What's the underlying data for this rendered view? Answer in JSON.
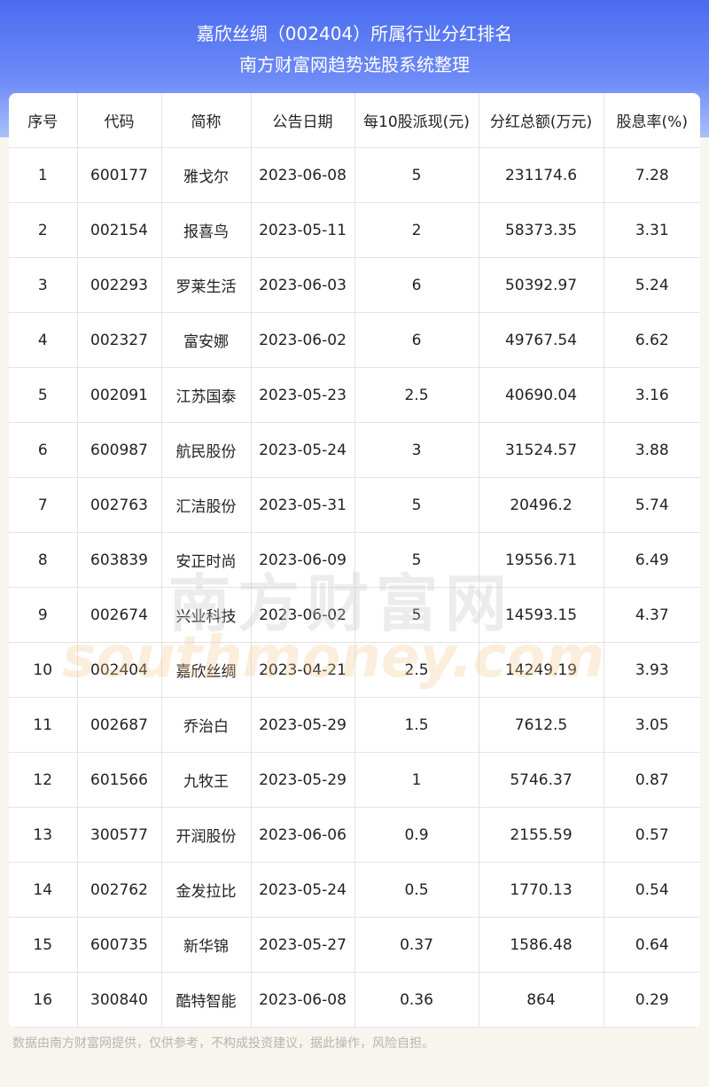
{
  "header": {
    "title": "嘉欣丝绸（002404）所属行业分红排名",
    "subtitle": "南方财富网趋势选股系统整理"
  },
  "table": {
    "columns": [
      "序号",
      "代码",
      "简称",
      "公告日期",
      "每10股派现(元)",
      "分红总额(万元)",
      "股息率(%)"
    ],
    "rows": [
      [
        "1",
        "600177",
        "雅戈尔",
        "2023-06-08",
        "5",
        "231174.6",
        "7.28"
      ],
      [
        "2",
        "002154",
        "报喜鸟",
        "2023-05-11",
        "2",
        "58373.35",
        "3.31"
      ],
      [
        "3",
        "002293",
        "罗莱生活",
        "2023-06-03",
        "6",
        "50392.97",
        "5.24"
      ],
      [
        "4",
        "002327",
        "富安娜",
        "2023-06-02",
        "6",
        "49767.54",
        "6.62"
      ],
      [
        "5",
        "002091",
        "江苏国泰",
        "2023-05-23",
        "2.5",
        "40690.04",
        "3.16"
      ],
      [
        "6",
        "600987",
        "航民股份",
        "2023-05-24",
        "3",
        "31524.57",
        "3.88"
      ],
      [
        "7",
        "002763",
        "汇洁股份",
        "2023-05-31",
        "5",
        "20496.2",
        "5.74"
      ],
      [
        "8",
        "603839",
        "安正时尚",
        "2023-06-09",
        "5",
        "19556.71",
        "6.49"
      ],
      [
        "9",
        "002674",
        "兴业科技",
        "2023-06-02",
        "5",
        "14593.15",
        "4.37"
      ],
      [
        "10",
        "002404",
        "嘉欣丝绸",
        "2023-04-21",
        "2.5",
        "14249.19",
        "3.93"
      ],
      [
        "11",
        "002687",
        "乔治白",
        "2023-05-29",
        "1.5",
        "7612.5",
        "3.05"
      ],
      [
        "12",
        "601566",
        "九牧王",
        "2023-05-29",
        "1",
        "5746.37",
        "0.87"
      ],
      [
        "13",
        "300577",
        "开润股份",
        "2023-06-06",
        "0.9",
        "2155.59",
        "0.57"
      ],
      [
        "14",
        "002762",
        "金发拉比",
        "2023-05-24",
        "0.5",
        "1770.13",
        "0.54"
      ],
      [
        "15",
        "600735",
        "新华锦",
        "2023-05-27",
        "0.37",
        "1586.48",
        "0.64"
      ],
      [
        "16",
        "300840",
        "酷特智能",
        "2023-06-08",
        "0.36",
        "864",
        "0.29"
      ]
    ]
  },
  "watermark": {
    "name": "南方财富网",
    "url": "southmoney.com"
  },
  "footer": "数据由南方财富网提供，仅供参考，不构成投资建议，据此操作，风险自担。"
}
